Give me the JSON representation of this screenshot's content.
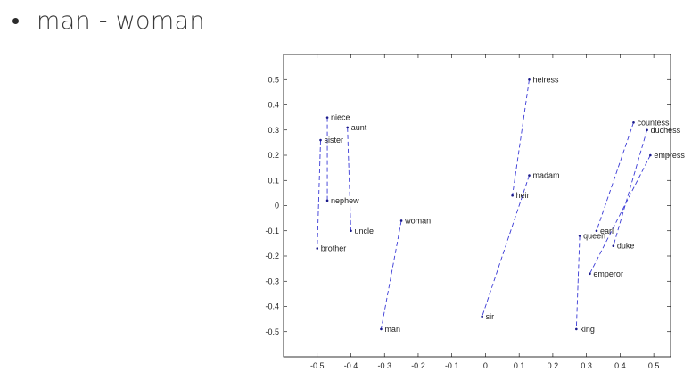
{
  "slide": {
    "bullet_text": "man - woman"
  },
  "chart_data": {
    "type": "scatter",
    "title": "",
    "xlabel": "",
    "ylabel": "",
    "xlim": [
      -0.6,
      0.55
    ],
    "ylim": [
      -0.6,
      0.6
    ],
    "xticks": [
      -0.5,
      -0.4,
      -0.3,
      -0.2,
      -0.1,
      0,
      0.1,
      0.2,
      0.3,
      0.4,
      0.5
    ],
    "yticks": [
      0.5,
      0.4,
      0.3,
      0.2,
      0.1,
      0,
      -0.1,
      -0.2,
      -0.3,
      -0.4,
      -0.5
    ],
    "xtick_labels": [
      "-0.5",
      "-0.4",
      "-0.3",
      "-0.2",
      "-0.1",
      "0",
      "0.1",
      "0.2",
      "0.3",
      "0.4",
      "0.5"
    ],
    "ytick_labels": [
      "0.5",
      "0.4",
      "0.3",
      "0.2",
      "0.1",
      "0",
      "-0.1",
      "-0.2",
      "-0.3",
      "-0.4",
      "-0.5"
    ],
    "points": [
      {
        "word": "niece",
        "x": -0.47,
        "y": 0.35
      },
      {
        "word": "aunt",
        "x": -0.41,
        "y": 0.31
      },
      {
        "word": "sister",
        "x": -0.49,
        "y": 0.26
      },
      {
        "word": "nephew",
        "x": -0.47,
        "y": 0.02
      },
      {
        "word": "uncle",
        "x": -0.4,
        "y": -0.1
      },
      {
        "word": "brother",
        "x": -0.5,
        "y": -0.17
      },
      {
        "word": "woman",
        "x": -0.25,
        "y": -0.06
      },
      {
        "word": "man",
        "x": -0.31,
        "y": -0.49
      },
      {
        "word": "heiress",
        "x": 0.13,
        "y": 0.5
      },
      {
        "word": "madam",
        "x": 0.13,
        "y": 0.12
      },
      {
        "word": "heir",
        "x": 0.08,
        "y": 0.04
      },
      {
        "word": "sir",
        "x": -0.01,
        "y": -0.44
      },
      {
        "word": "countess",
        "x": 0.44,
        "y": 0.33
      },
      {
        "word": "duchess",
        "x": 0.48,
        "y": 0.3
      },
      {
        "word": "empress",
        "x": 0.49,
        "y": 0.2
      },
      {
        "word": "earl",
        "x": 0.33,
        "y": -0.1
      },
      {
        "word": "queen",
        "x": 0.28,
        "y": -0.12
      },
      {
        "word": "duke",
        "x": 0.38,
        "y": -0.16
      },
      {
        "word": "emperor",
        "x": 0.31,
        "y": -0.27
      },
      {
        "word": "king",
        "x": 0.27,
        "y": -0.49
      }
    ],
    "pairs": [
      [
        "niece",
        "nephew"
      ],
      [
        "aunt",
        "uncle"
      ],
      [
        "sister",
        "brother"
      ],
      [
        "woman",
        "man"
      ],
      [
        "heiress",
        "heir"
      ],
      [
        "madam",
        "sir"
      ],
      [
        "countess",
        "earl"
      ],
      [
        "duchess",
        "duke"
      ],
      [
        "empress",
        "emperor"
      ],
      [
        "queen",
        "king"
      ]
    ],
    "line_color": "#3a3ad6",
    "point_color": "#1a1a8a",
    "grid": false
  }
}
